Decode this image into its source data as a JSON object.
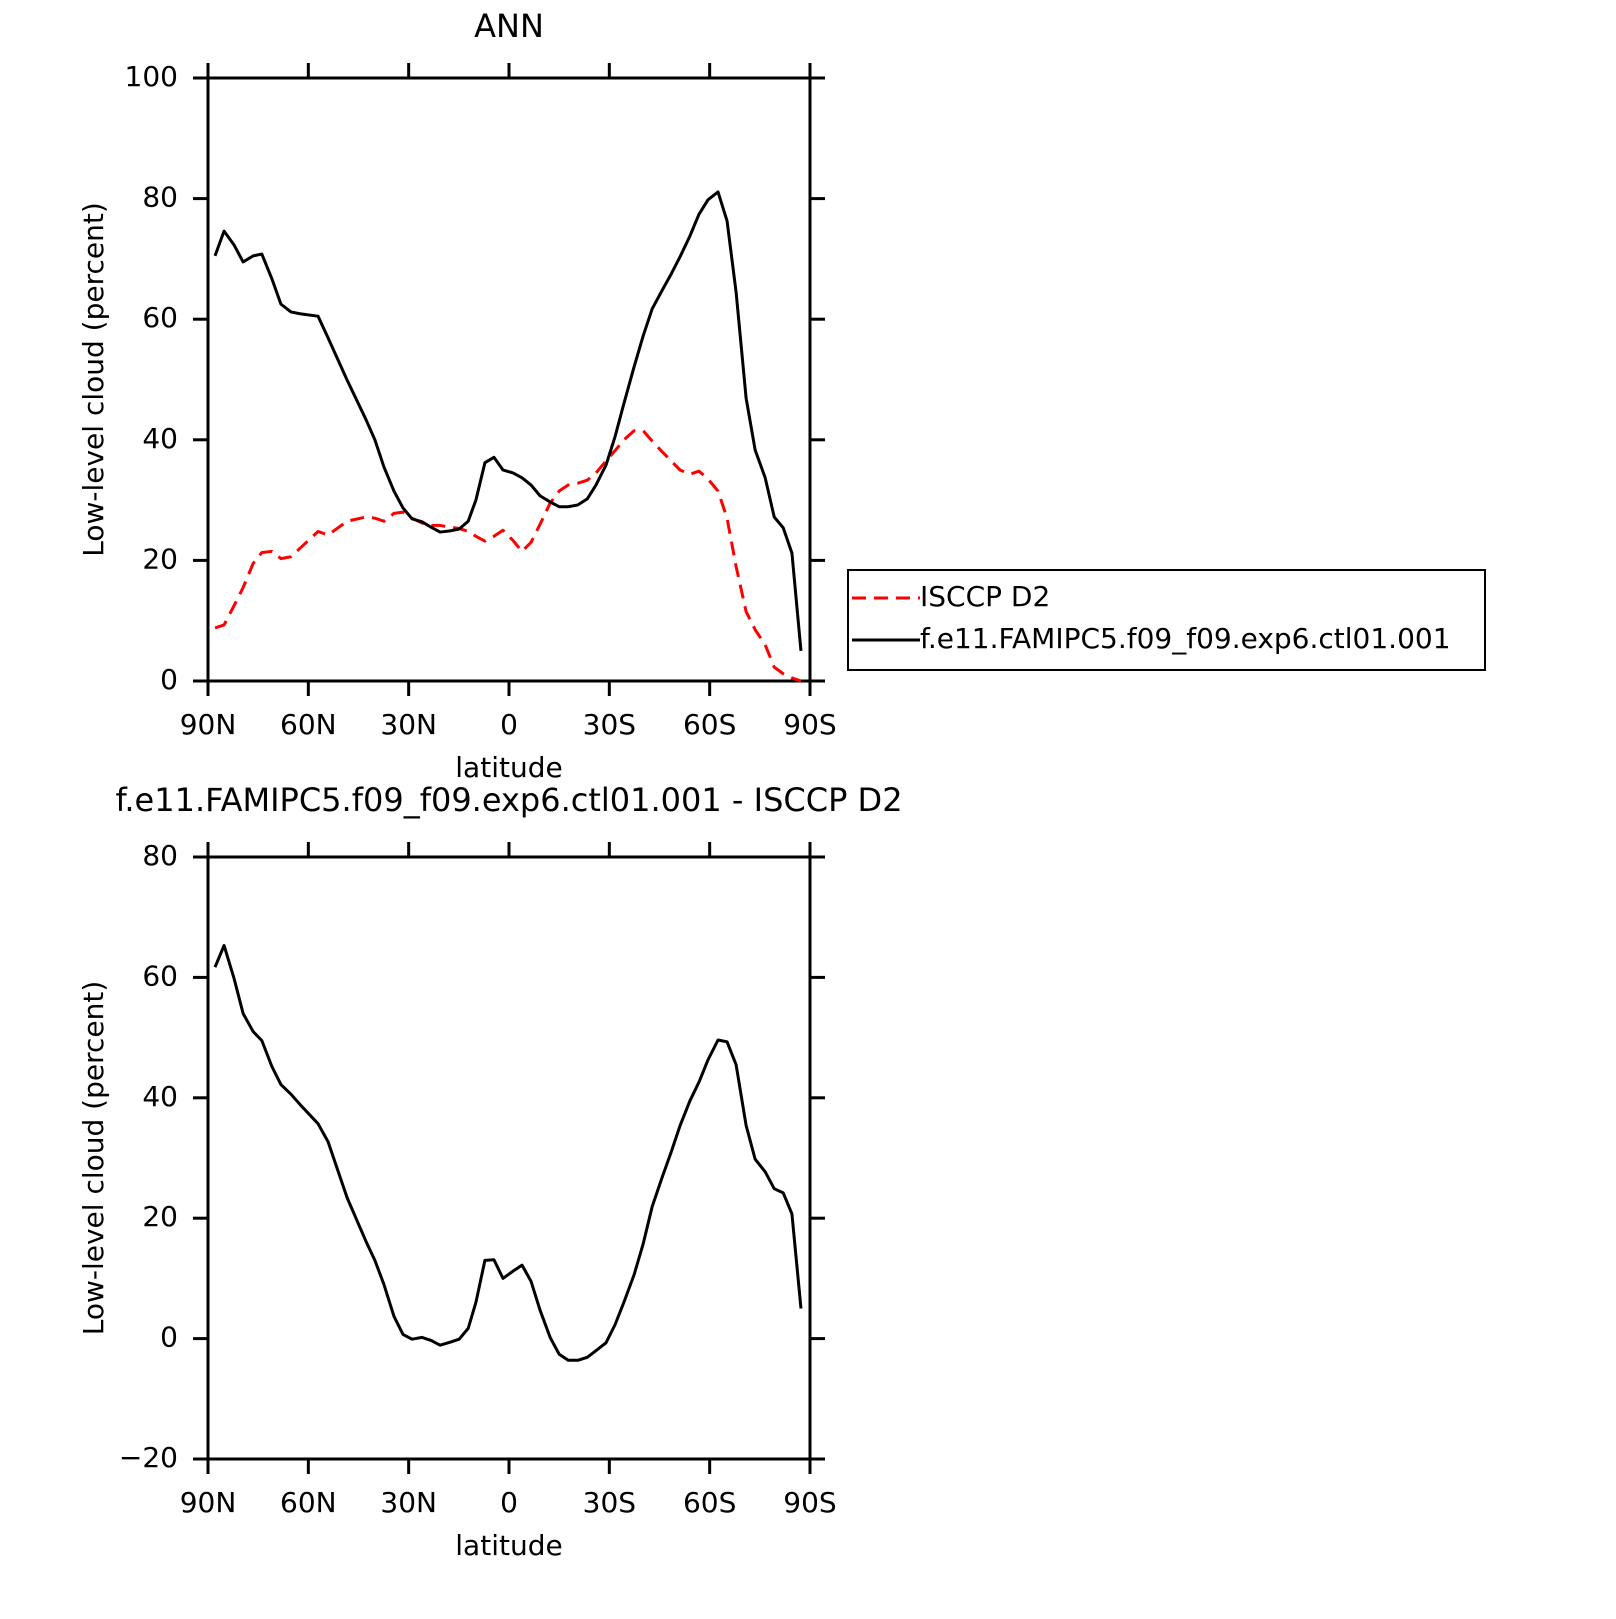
{
  "chart_data": [
    {
      "type": "line",
      "title": "ANN",
      "xlabel": "latitude",
      "ylabel": "Low-level cloud (percent)",
      "x": [
        87.9,
        85.2,
        82.2,
        79.5,
        76.5,
        73.9,
        70.9,
        68.2,
        65.2,
        62.5,
        57.1,
        54.1,
        48.4,
        42.8,
        40.1,
        37.4,
        34.4,
        31.7,
        29.0,
        26.0,
        23.3,
        20.6,
        17.6,
        14.9,
        12.2,
        9.9,
        7.2,
        4.5,
        1.8,
        -1.2,
        -3.9,
        -6.6,
        -9.3,
        -12.3,
        -15.0,
        -17.7,
        -20.6,
        -23.4,
        -26.0,
        -29.0,
        -31.7,
        -34.4,
        -37.4,
        -40.1,
        -42.8,
        -45.8,
        -48.5,
        -51.1,
        -54.1,
        -56.8,
        -59.5,
        -62.5,
        -65.2,
        -67.9,
        -70.9,
        -73.6,
        -76.6,
        -79.3,
        -82.0,
        -84.6,
        -87.3
      ],
      "xlim": [
        90,
        -90
      ],
      "xticks": [
        {
          "value": 90,
          "label": "90N"
        },
        {
          "value": 60,
          "label": "60N"
        },
        {
          "value": 30,
          "label": "30N"
        },
        0,
        {
          "value": -30,
          "label": "30S"
        },
        {
          "value": -60,
          "label": "60S"
        },
        {
          "value": -90,
          "label": "90S"
        }
      ],
      "ylim": [
        0,
        100
      ],
      "yticks": [
        0,
        20,
        40,
        60,
        80,
        100
      ],
      "legend": "right",
      "series": [
        {
          "name": "ISCCP D2",
          "color": "#ff0000",
          "dash": true,
          "values": [
            8.8,
            9.3,
            12.5,
            15.5,
            19.5,
            21.3,
            21.5,
            20.3,
            20.6,
            22.0,
            24.8,
            24.2,
            26.5,
            27.2,
            27.0,
            26.5,
            27.8,
            28.0,
            27.0,
            26.2,
            25.8,
            25.8,
            25.5,
            25.3,
            24.8,
            24.0,
            23.2,
            24.0,
            25.0,
            23.3,
            21.5,
            23.0,
            26.0,
            29.5,
            31.5,
            32.5,
            32.8,
            33.3,
            34.5,
            36.5,
            38.2,
            40.0,
            41.5,
            41.5,
            39.8,
            38.0,
            36.5,
            35.0,
            34.3,
            34.8,
            33.5,
            31.5,
            27.0,
            19.0,
            11.5,
            8.5,
            6.0,
            2.3,
            1.2,
            0.5,
            0.0
          ]
        },
        {
          "name": "f.e11.FAMIPC5.f09_f09.exp6.ctl01.001",
          "color": "#000000",
          "dash": false,
          "values": [
            70.5,
            74.6,
            72.3,
            69.5,
            70.5,
            70.8,
            66.7,
            62.5,
            61.2,
            60.9,
            60.5,
            56.9,
            49.9,
            43.4,
            40.0,
            35.5,
            31.5,
            28.7,
            26.9,
            26.4,
            25.5,
            24.7,
            24.9,
            25.2,
            26.5,
            30.0,
            36.2,
            37.1,
            35.0,
            34.5,
            33.7,
            32.5,
            30.7,
            29.7,
            28.9,
            28.9,
            29.2,
            30.2,
            32.5,
            35.8,
            40.5,
            46.1,
            52.1,
            57.2,
            61.7,
            64.8,
            67.5,
            70.3,
            73.8,
            77.4,
            79.8,
            81.1,
            76.3,
            64.5,
            46.9,
            38.3,
            33.7,
            27.2,
            25.4,
            21.2,
            5.0
          ]
        }
      ]
    },
    {
      "type": "line",
      "title": "f.e11.FAMIPC5.f09_f09.exp6.ctl01.001 - ISCCP D2",
      "xlabel": "latitude",
      "ylabel": "Low-level cloud (percent)",
      "x": [
        87.9,
        85.2,
        82.2,
        79.5,
        76.5,
        73.9,
        70.9,
        68.2,
        65.2,
        62.5,
        57.1,
        54.1,
        48.4,
        42.8,
        40.1,
        37.4,
        34.4,
        31.7,
        29.0,
        26.0,
        23.3,
        20.6,
        17.6,
        14.9,
        12.2,
        9.9,
        7.2,
        4.5,
        1.8,
        -1.2,
        -3.9,
        -6.6,
        -9.3,
        -12.3,
        -15.0,
        -17.7,
        -20.6,
        -23.4,
        -26.0,
        -29.0,
        -31.7,
        -34.4,
        -37.4,
        -40.1,
        -42.8,
        -45.8,
        -48.5,
        -51.1,
        -54.1,
        -56.8,
        -59.5,
        -62.5,
        -65.2,
        -67.9,
        -70.9,
        -73.6,
        -76.6,
        -79.3,
        -82.0,
        -84.6,
        -87.3
      ],
      "xlim": [
        90,
        -90
      ],
      "xticks": [
        {
          "value": 90,
          "label": "90N"
        },
        {
          "value": 60,
          "label": "60N"
        },
        {
          "value": 30,
          "label": "30N"
        },
        0,
        {
          "value": -30,
          "label": "30S"
        },
        {
          "value": -60,
          "label": "60S"
        },
        {
          "value": -90,
          "label": "90S"
        }
      ],
      "ylim": [
        -20,
        80
      ],
      "yticks": [
        {
          "value": -20,
          "label": "−20"
        },
        0,
        20,
        40,
        60,
        80
      ],
      "color": "#000000",
      "values": [
        61.7,
        65.3,
        59.8,
        54.0,
        51.0,
        49.5,
        45.2,
        42.2,
        40.6,
        38.9,
        35.7,
        32.7,
        23.4,
        16.2,
        13.0,
        9.0,
        3.7,
        0.7,
        -0.1,
        0.2,
        -0.3,
        -1.1,
        -0.6,
        -0.1,
        1.7,
        6.0,
        13.0,
        13.1,
        10.0,
        11.2,
        12.2,
        9.5,
        4.7,
        0.2,
        -2.6,
        -3.6,
        -3.6,
        -3.1,
        -2.0,
        -0.7,
        2.3,
        6.1,
        10.6,
        15.7,
        21.9,
        26.8,
        31.0,
        35.3,
        39.5,
        42.6,
        46.3,
        49.6,
        49.3,
        45.5,
        35.4,
        29.8,
        27.7,
        24.9,
        24.2,
        20.7,
        5.0
      ]
    }
  ]
}
